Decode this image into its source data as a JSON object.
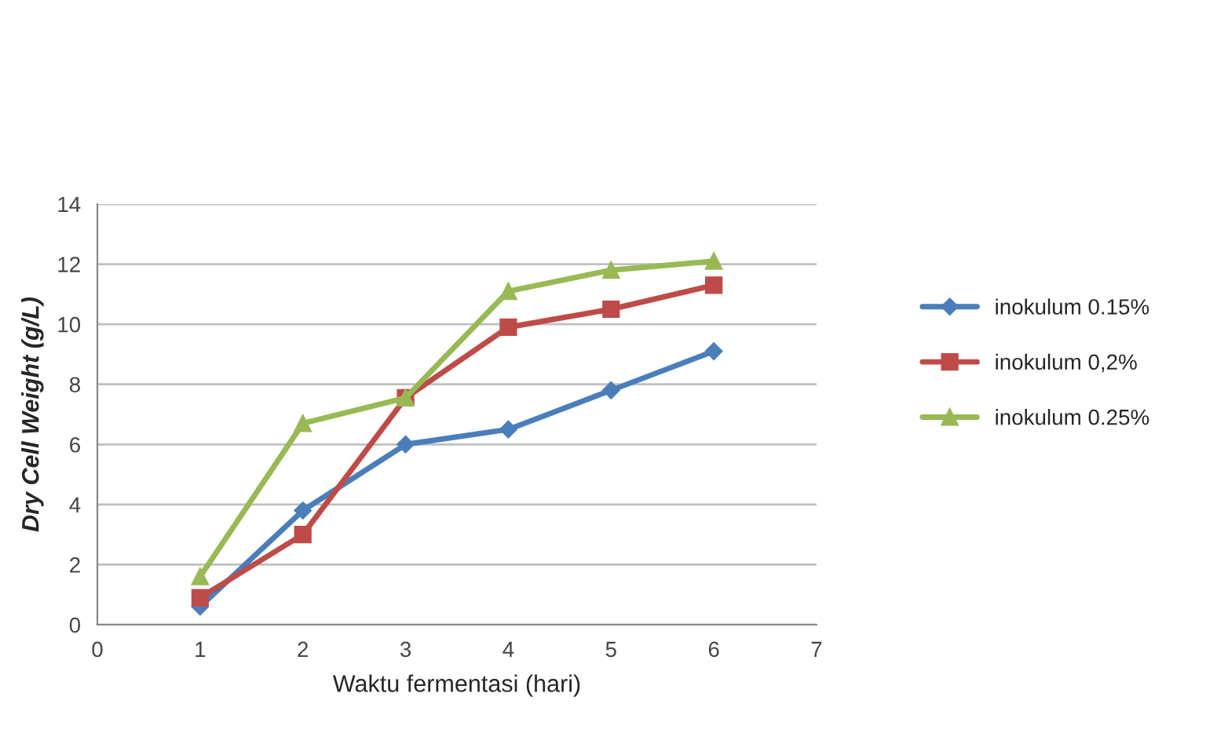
{
  "chart_data": {
    "type": "line",
    "xlabel": "Waktu fermentasi (hari)",
    "ylabel": "Dry Cell Weight (g/L)",
    "x": [
      1,
      2,
      3,
      4,
      5,
      6
    ],
    "series": [
      {
        "name": "inokulum 0.15%",
        "color": "#4a7ebb",
        "marker": "diamond",
        "values": [
          0.6,
          3.8,
          6.0,
          6.5,
          7.8,
          9.1
        ]
      },
      {
        "name": "inokulum 0,2%",
        "color": "#be4b48",
        "marker": "square",
        "values": [
          0.9,
          3.0,
          7.55,
          9.9,
          10.5,
          11.3
        ]
      },
      {
        "name": "inokulum 0.25%",
        "color": "#98b954",
        "marker": "triangle",
        "values": [
          1.6,
          6.7,
          7.55,
          11.1,
          11.8,
          12.1
        ]
      }
    ],
    "xlim": [
      0,
      7
    ],
    "xticks": [
      0,
      1,
      2,
      3,
      4,
      5,
      6,
      7
    ],
    "ylim": [
      0,
      14
    ],
    "yticks": [
      0,
      2,
      4,
      6,
      8,
      10,
      12,
      14
    ],
    "grid": "y",
    "legend": "right",
    "line_style": "solid"
  }
}
